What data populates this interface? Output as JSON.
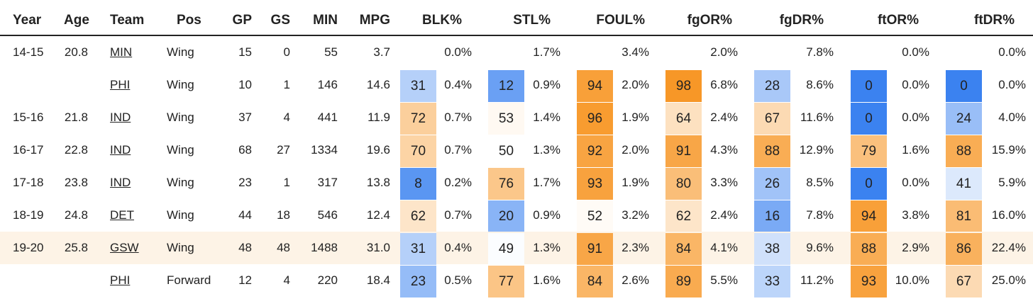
{
  "headers": [
    "Year",
    "Age",
    "Team",
    "Pos",
    "GP",
    "GS",
    "MIN",
    "MPG",
    "BLK%",
    "STL%",
    "FOUL%",
    "fgOR%",
    "fgDR%",
    "ftOR%",
    "ftDR%"
  ],
  "rows": [
    {
      "year": "14-15",
      "age": "20.8",
      "team": "MIN",
      "pos": "Wing",
      "gp": "15",
      "gs": "0",
      "min": "55",
      "mpg": "3.7",
      "stats": [
        {
          "p": "",
          "v": "0.0%"
        },
        {
          "p": "",
          "v": "1.7%"
        },
        {
          "p": "",
          "v": "3.4%"
        },
        {
          "p": "",
          "v": "2.0%"
        },
        {
          "p": "",
          "v": "7.8%"
        },
        {
          "p": "",
          "v": "0.0%"
        },
        {
          "p": "",
          "v": "0.0%"
        }
      ]
    },
    {
      "year": "",
      "age": "",
      "team": "PHI",
      "pos": "Wing",
      "gp": "10",
      "gs": "1",
      "min": "146",
      "mpg": "14.6",
      "stats": [
        {
          "p": "31",
          "v": "0.4%"
        },
        {
          "p": "12",
          "v": "0.9%"
        },
        {
          "p": "94",
          "v": "2.0%"
        },
        {
          "p": "98",
          "v": "6.8%"
        },
        {
          "p": "28",
          "v": "8.6%"
        },
        {
          "p": "0",
          "v": "0.0%"
        },
        {
          "p": "0",
          "v": "0.0%"
        }
      ]
    },
    {
      "year": "15-16",
      "age": "21.8",
      "team": "IND",
      "pos": "Wing",
      "gp": "37",
      "gs": "4",
      "min": "441",
      "mpg": "11.9",
      "stats": [
        {
          "p": "72",
          "v": "0.7%"
        },
        {
          "p": "53",
          "v": "1.4%"
        },
        {
          "p": "96",
          "v": "1.9%"
        },
        {
          "p": "64",
          "v": "2.4%"
        },
        {
          "p": "67",
          "v": "11.6%"
        },
        {
          "p": "0",
          "v": "0.0%"
        },
        {
          "p": "24",
          "v": "4.0%"
        }
      ]
    },
    {
      "year": "16-17",
      "age": "22.8",
      "team": "IND",
      "pos": "Wing",
      "gp": "68",
      "gs": "27",
      "min": "1334",
      "mpg": "19.6",
      "stats": [
        {
          "p": "70",
          "v": "0.7%"
        },
        {
          "p": "50",
          "v": "1.3%"
        },
        {
          "p": "92",
          "v": "2.0%"
        },
        {
          "p": "91",
          "v": "4.3%"
        },
        {
          "p": "88",
          "v": "12.9%"
        },
        {
          "p": "79",
          "v": "1.6%"
        },
        {
          "p": "88",
          "v": "15.9%"
        }
      ]
    },
    {
      "year": "17-18",
      "age": "23.8",
      "team": "IND",
      "pos": "Wing",
      "gp": "23",
      "gs": "1",
      "min": "317",
      "mpg": "13.8",
      "stats": [
        {
          "p": "8",
          "v": "0.2%"
        },
        {
          "p": "76",
          "v": "1.7%"
        },
        {
          "p": "93",
          "v": "1.9%"
        },
        {
          "p": "80",
          "v": "3.3%"
        },
        {
          "p": "26",
          "v": "8.5%"
        },
        {
          "p": "0",
          "v": "0.0%"
        },
        {
          "p": "41",
          "v": "5.9%"
        }
      ]
    },
    {
      "year": "18-19",
      "age": "24.8",
      "team": "DET",
      "pos": "Wing",
      "gp": "44",
      "gs": "18",
      "min": "546",
      "mpg": "12.4",
      "stats": [
        {
          "p": "62",
          "v": "0.7%"
        },
        {
          "p": "20",
          "v": "0.9%"
        },
        {
          "p": "52",
          "v": "3.2%"
        },
        {
          "p": "62",
          "v": "2.4%"
        },
        {
          "p": "16",
          "v": "7.8%"
        },
        {
          "p": "94",
          "v": "3.8%"
        },
        {
          "p": "81",
          "v": "16.0%"
        }
      ]
    },
    {
      "year": "19-20",
      "age": "25.8",
      "team": "GSW",
      "pos": "Wing",
      "gp": "48",
      "gs": "48",
      "min": "1488",
      "mpg": "31.0",
      "highlight": true,
      "stats": [
        {
          "p": "31",
          "v": "0.4%"
        },
        {
          "p": "49",
          "v": "1.3%"
        },
        {
          "p": "91",
          "v": "2.3%"
        },
        {
          "p": "84",
          "v": "4.1%"
        },
        {
          "p": "38",
          "v": "9.6%"
        },
        {
          "p": "88",
          "v": "2.9%"
        },
        {
          "p": "86",
          "v": "22.4%"
        }
      ]
    },
    {
      "year": "",
      "age": "",
      "team": "PHI",
      "pos": "Forward",
      "gp": "12",
      "gs": "4",
      "min": "220",
      "mpg": "18.4",
      "stats": [
        {
          "p": "23",
          "v": "0.5%"
        },
        {
          "p": "77",
          "v": "1.6%"
        },
        {
          "p": "84",
          "v": "2.6%"
        },
        {
          "p": "89",
          "v": "5.5%"
        },
        {
          "p": "33",
          "v": "11.2%"
        },
        {
          "p": "93",
          "v": "10.0%"
        },
        {
          "p": "67",
          "v": "25.0%"
        }
      ]
    }
  ],
  "colors": {
    "text": "#222222",
    "highlight_row": "#fdf3e6",
    "low": "#3b82f0",
    "mid": "#ffffff",
    "high": "#f7931e"
  }
}
